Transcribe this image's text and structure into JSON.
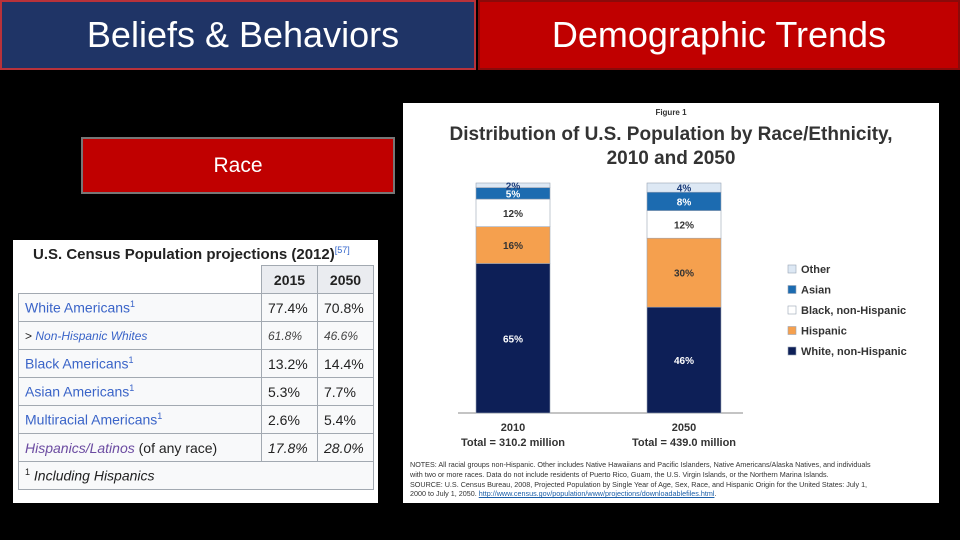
{
  "header": {
    "left_title": "Beliefs & Behaviors",
    "right_title": "Demographic Trends"
  },
  "race_label": "Race",
  "census_table": {
    "title": "U.S. Census Population projections (2012)",
    "title_ref": "[57]",
    "columns": [
      "2015",
      "2050"
    ],
    "rows": [
      {
        "label": "White Americans",
        "sup": "1",
        "v2015": "77.4%",
        "v2050": "70.8%"
      },
      {
        "prefix": ">",
        "label": "Non-Hispanic Whites",
        "v2015": "61.8%",
        "v2050": "46.6%"
      },
      {
        "label": "Black Americans",
        "sup": "1",
        "v2015": "13.2%",
        "v2050": "14.4%"
      },
      {
        "label": "Asian Americans",
        "sup": "1",
        "v2015": "5.3%",
        "v2050": "7.7%"
      },
      {
        "label": "Multiracial Americans",
        "sup": "1",
        "v2015": "2.6%",
        "v2050": "5.4%"
      },
      {
        "label": "Hispanics/Latinos",
        "suffix": "(of any race)",
        "v2015": "17.8%",
        "v2050": "28.0%"
      }
    ],
    "footnote_mark": "1",
    "footnote": "Including Hispanics"
  },
  "figure": {
    "label": "Figure 1",
    "title_line1": "Distribution of U.S. Population by Race/Ethnicity,",
    "title_line2": "2010 and 2050",
    "notes_line1": "NOTES: All racial groups non-Hispanic. Other includes Native Hawaiians and Pacific Islanders, Native Americans/Alaska Natives, and individuals",
    "notes_line2": "with two or more races. Data do not include residents of Puerto Rico, Guam, the U.S. Virgin Islands, or the Northern Marina Islands.",
    "notes_line3": "SOURCE: U.S. Census Bureau, 2008, Projected Population by Single Year of Age, Sex, Race, and Hispanic Origin for the United States: July 1,",
    "notes_line4": "2000 to July 1, 2050.",
    "notes_link": "http://www.census.gov/population/www/projections/downloadablefiles.html",
    "notes_end": "."
  },
  "chart_data": {
    "type": "bar",
    "stacked": true,
    "title": "Distribution of U.S. Population by Race/Ethnicity, 2010 and 2050",
    "categories": [
      "2010",
      "2050"
    ],
    "category_sublabels": [
      "Total = 310.2 million",
      "Total = 439.0 million"
    ],
    "ylim": [
      0,
      100
    ],
    "legend_position": "right",
    "series": [
      {
        "name": "White, non-Hispanic",
        "color": "#0d1f57",
        "values": [
          65,
          46
        ],
        "labels": [
          "65%",
          "46%"
        ],
        "label_color": "#ffffff"
      },
      {
        "name": "Hispanic",
        "color": "#f5a04e",
        "values": [
          16,
          30
        ],
        "labels": [
          "16%",
          "30%"
        ],
        "label_color": "#333333"
      },
      {
        "name": "Black, non-Hispanic",
        "color": "#ffffff",
        "values": [
          12,
          12
        ],
        "labels": [
          "12%",
          "12%"
        ],
        "label_color": "#333333"
      },
      {
        "name": "Asian",
        "color": "#1c6bb0",
        "values": [
          5,
          8
        ],
        "labels": [
          "5%",
          "8%"
        ],
        "label_color": "#ffffff"
      },
      {
        "name": "Other",
        "color": "#dde8f4",
        "values": [
          2,
          4
        ],
        "labels": [
          "2%",
          "4%"
        ],
        "label_color": "#1c3d7a"
      }
    ],
    "legend_order": [
      "Other",
      "Asian",
      "Black, non-Hispanic",
      "Hispanic",
      "White, non-Hispanic"
    ]
  }
}
